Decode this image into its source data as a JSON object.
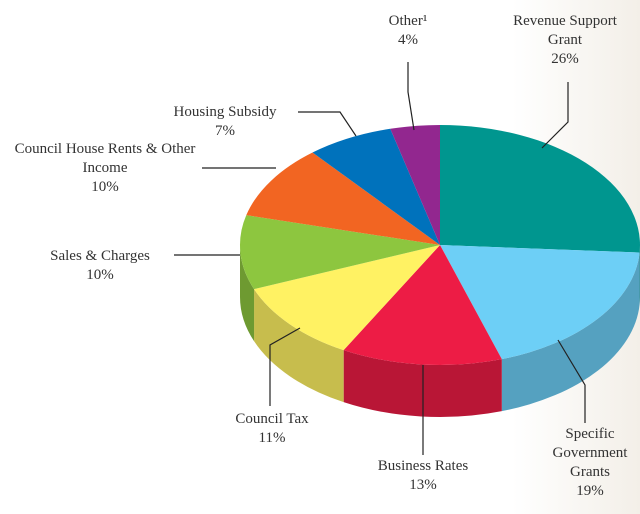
{
  "chart_data": {
    "type": "pie",
    "categories": [
      "Revenue Support Grant",
      "Specific Government Grants",
      "Business Rates",
      "Council Tax",
      "Sales & Charges",
      "Council House Rents & Other Income",
      "Housing Subsidy",
      "Other¹"
    ],
    "values": [
      26,
      19,
      13,
      11,
      10,
      10,
      7,
      4
    ],
    "value_labels": [
      "26%",
      "19%",
      "13%",
      "11%",
      "10%",
      "10%",
      "7%",
      "4%"
    ],
    "colors": [
      "#00968f",
      "#6dcff6",
      "#ed1c45",
      "#fff263",
      "#8dc63f",
      "#f26522",
      "#0072bc",
      "#92278f"
    ]
  }
}
